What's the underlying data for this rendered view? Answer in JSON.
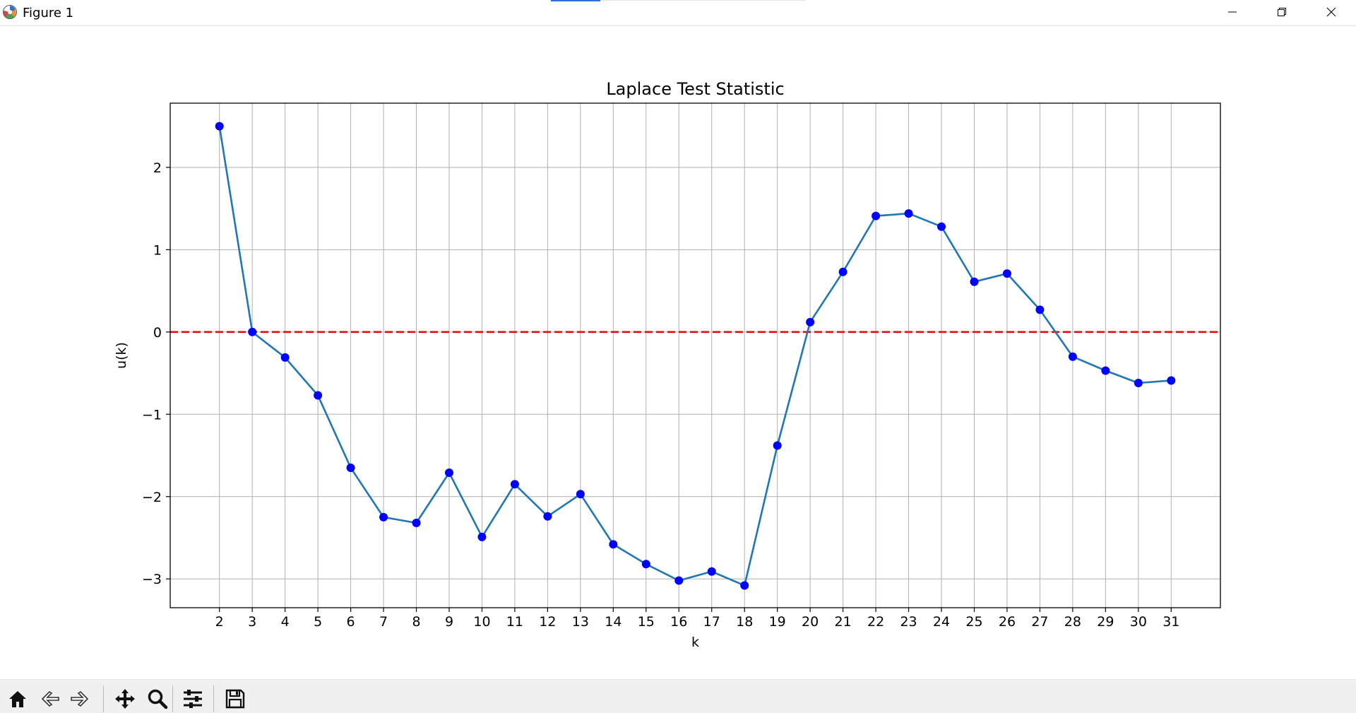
{
  "window": {
    "title": "Figure 1",
    "controls": [
      "minimize-icon",
      "restore-icon",
      "close-icon"
    ]
  },
  "toolbar": {
    "buttons": [
      "home-icon",
      "back-icon",
      "forward-icon",
      "pan-icon",
      "zoom-icon",
      "configure-subplots-icon",
      "save-icon"
    ]
  },
  "chart_data": {
    "type": "line",
    "title": "Laplace Test Statistic",
    "xlabel": "k",
    "ylabel": "u(k)",
    "x": [
      2,
      3,
      4,
      5,
      6,
      7,
      8,
      9,
      10,
      11,
      12,
      13,
      14,
      15,
      16,
      17,
      18,
      19,
      20,
      21,
      22,
      23,
      24,
      25,
      26,
      27,
      28,
      29,
      30,
      31
    ],
    "series": [
      {
        "values": [
          2.5,
          0.0,
          -0.31,
          -0.77,
          -1.65,
          -2.25,
          -2.32,
          -1.71,
          -2.49,
          -1.85,
          -2.24,
          -1.97,
          -2.58,
          -2.82,
          -3.02,
          -2.91,
          -3.08,
          -1.38,
          0.12,
          0.73,
          1.41,
          1.44,
          1.28,
          0.61,
          0.71,
          0.27,
          -0.3,
          -0.47,
          -0.62,
          -0.59
        ],
        "color": "#1f77b4",
        "marker_color": "#0000ff"
      }
    ],
    "reference_line": {
      "y": 0,
      "color": "#ff0000",
      "style": "dashed"
    },
    "xticks": [
      "2",
      "3",
      "4",
      "5",
      "6",
      "7",
      "8",
      "9",
      "10",
      "11",
      "12",
      "13",
      "14",
      "15",
      "16",
      "17",
      "18",
      "19",
      "20",
      "21",
      "22",
      "23",
      "24",
      "25",
      "26",
      "27",
      "28",
      "29",
      "30",
      "31"
    ],
    "yticks": [
      "2",
      "1",
      "0",
      "−1",
      "−2",
      "−3"
    ],
    "ytick_values": [
      2,
      1,
      0,
      -1,
      -2,
      -3
    ],
    "xlim": [
      0.5,
      32.5
    ],
    "ylim": [
      -3.35,
      2.78
    ],
    "grid": true
  }
}
